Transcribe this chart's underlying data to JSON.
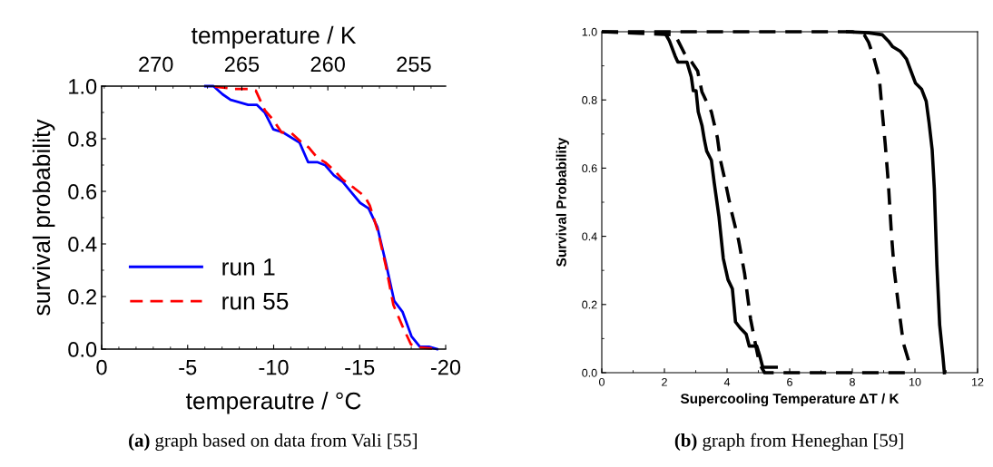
{
  "chart_data": [
    {
      "type": "line",
      "xlabel": "temperautre / °C",
      "ylabel": "survival probability",
      "x2label": "temperature / K",
      "xlim": [
        0,
        -20
      ],
      "xticks": [
        0,
        -5,
        -10,
        -15,
        -20
      ],
      "x2lim": [
        273.15,
        253.15
      ],
      "x2ticks": [
        270,
        265,
        260,
        255
      ],
      "ylim": [
        0,
        1
      ],
      "yticks": [
        {
          "value": 0,
          "label": "0.0"
        },
        {
          "value": 0.2,
          "label": "0.2"
        },
        {
          "value": 0.4,
          "label": "0.4"
        },
        {
          "value": 0.6,
          "label": "0.6"
        },
        {
          "value": 0.8,
          "label": "0.8"
        },
        {
          "value": 1,
          "label": "1.0"
        }
      ],
      "grid": false,
      "legend": "bottom left",
      "annotations": [
        "(a) graph based on data from Vali [55]"
      ],
      "series": [
        {
          "name": "run 1",
          "color": "#0000ff",
          "line_style": "solid",
          "x": [
            -6.03,
            -6.5,
            -7.03,
            -7.5,
            -8.52,
            -9.02,
            -9.49,
            -9.98,
            -10.54,
            -11.51,
            -12.0,
            -12.53,
            -13.0,
            -13.5,
            -14.02,
            -14.53,
            -15.03,
            -15.52,
            -16.03,
            -16.52,
            -17.01,
            -17.49,
            -18.01,
            -18.5,
            -19.03,
            -19.5
          ],
          "values": [
            1.0,
            1.0,
            0.969,
            0.948,
            0.929,
            0.929,
            0.899,
            0.836,
            0.824,
            0.785,
            0.711,
            0.711,
            0.699,
            0.661,
            0.636,
            0.595,
            0.556,
            0.535,
            0.464,
            0.328,
            0.183,
            0.142,
            0.049,
            0.009,
            0.009,
            0.0
          ]
        },
        {
          "name": "run 55",
          "color": "#ff0000",
          "line_style": "dashed",
          "x": [
            -6.59,
            -7.73,
            -8.52,
            -8.96,
            -9.49,
            -9.98,
            -10.46,
            -11.02,
            -11.51,
            -12.04,
            -12.53,
            -13.0,
            -13.53,
            -14.02,
            -14.67,
            -15.29,
            -15.59,
            -16.08,
            -16.52,
            -16.96,
            -17.49,
            -17.98,
            -18.45,
            -19.5
          ],
          "values": [
            0.998,
            0.989,
            0.989,
            0.983,
            0.908,
            0.871,
            0.824,
            0.822,
            0.793,
            0.767,
            0.728,
            0.71,
            0.679,
            0.644,
            0.613,
            0.581,
            0.546,
            0.443,
            0.317,
            0.168,
            0.087,
            0.018,
            0.007,
            0.0
          ]
        }
      ]
    },
    {
      "type": "line",
      "xlabel": "Supercooling Temperature ΔT / K",
      "ylabel": "Survival Probability",
      "xlim": [
        0,
        12
      ],
      "xticks": [
        0,
        2,
        4,
        6,
        8,
        10,
        12
      ],
      "ylim": [
        0,
        1
      ],
      "yticks": [
        {
          "value": 0,
          "label": "0.0"
        },
        {
          "value": 0.2,
          "label": "0.2"
        },
        {
          "value": 0.4,
          "label": "0.4"
        },
        {
          "value": 0.6,
          "label": "0.6"
        },
        {
          "value": 0.8,
          "label": "0.8"
        },
        {
          "value": 1,
          "label": "1.0"
        }
      ],
      "grid": false,
      "legend": false,
      "annotations": [
        "(b) graph from Heneghan [59]"
      ],
      "series": [
        {
          "color": "#000000",
          "line_style": "solid",
          "x": [
            2.05,
            2.16,
            2.34,
            2.43,
            2.72,
            2.86,
            2.92,
            3.01,
            3.08,
            3.2,
            3.28,
            3.35,
            3.5,
            3.59,
            3.74,
            3.88,
            4.03,
            4.17,
            4.27,
            4.42,
            4.61,
            4.71,
            4.95,
            5.04,
            5.14,
            5.57
          ],
          "values": [
            0.991,
            0.973,
            0.929,
            0.911,
            0.911,
            0.867,
            0.827,
            0.827,
            0.765,
            0.725,
            0.681,
            0.65,
            0.623,
            0.557,
            0.459,
            0.335,
            0.273,
            0.246,
            0.149,
            0.131,
            0.113,
            0.078,
            0.078,
            0.051,
            0.016,
            0.016
          ]
        },
        {
          "color": "#000000",
          "line_style": "dashed",
          "x": [
            0,
            2.34,
            2.63,
            2.87,
            3.06,
            3.2,
            3.5,
            3.69,
            3.79,
            3.93,
            4.13,
            4.37,
            4.56,
            4.75,
            4.9,
            5.04,
            5.2,
            9.7
          ],
          "values": [
            1.0,
            0.991,
            0.938,
            0.911,
            0.885,
            0.823,
            0.765,
            0.69,
            0.623,
            0.566,
            0.477,
            0.388,
            0.291,
            0.158,
            0.087,
            0.025,
            0.0,
            0.0
          ]
        },
        {
          "color": "#000000",
          "line_style": "dashed",
          "x": [
            0,
            8.0,
            8.38,
            8.52,
            8.67,
            8.86,
            8.96,
            9.05,
            9.15,
            9.25,
            9.34,
            9.49,
            9.63,
            9.86
          ],
          "values": [
            1.0,
            1.0,
            0.991,
            0.969,
            0.929,
            0.867,
            0.761,
            0.672,
            0.557,
            0.406,
            0.3,
            0.184,
            0.087,
            0.016
          ]
        },
        {
          "color": "#000000",
          "line_style": "solid",
          "x": [
            7.85,
            8.52,
            8.96,
            9.15,
            9.29,
            9.54,
            9.73,
            9.87,
            10.02,
            10.21,
            10.36,
            10.45,
            10.55,
            10.62,
            10.7,
            10.79,
            10.89,
            10.94
          ],
          "values": [
            1.0,
            0.997,
            0.991,
            0.973,
            0.956,
            0.942,
            0.92,
            0.885,
            0.849,
            0.832,
            0.796,
            0.734,
            0.654,
            0.539,
            0.317,
            0.14,
            0.051,
            0.0
          ]
        }
      ]
    }
  ]
}
